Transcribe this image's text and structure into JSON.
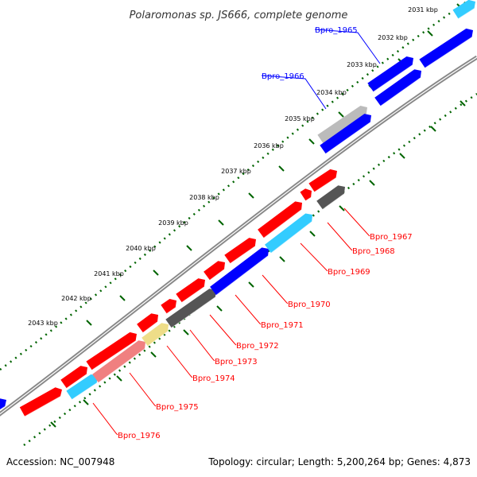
{
  "title": "Polaromonas sp. JS666, complete genome",
  "footer": {
    "accession": "Accession: NC_007948",
    "summary": "Topology: circular; Length: 5,200,264 bp; Genes: 4,873"
  },
  "colors": {
    "forward": "#ff0000",
    "reverse": "#0000ff",
    "backbone": "#777777",
    "tick": "#006400",
    "pseudogene": "#bbbbbb",
    "unknown": "#555555",
    "rna": "#33ccff",
    "other": "#eedd88"
  },
  "ticks": [
    "2031 kbp",
    "2032 kbp",
    "2033 kbp",
    "2034 kbp",
    "2035 kbp",
    "2036 kbp",
    "2037 kbp",
    "2038 kbp",
    "2039 kbp",
    "2040 kbp",
    "2041 kbp",
    "2042 kbp",
    "2043 kbp"
  ],
  "genes": [
    {
      "label": "Bpro_1965",
      "color": "reverse"
    },
    {
      "label": "Bpro_1966",
      "color": "reverse"
    },
    {
      "label": "Bpro_1967",
      "color": "forward"
    },
    {
      "label": "Bpro_1968",
      "color": "forward"
    },
    {
      "label": "Bpro_1969",
      "color": "forward"
    },
    {
      "label": "Bpro_1970",
      "color": "forward"
    },
    {
      "label": "Bpro_1971",
      "color": "forward"
    },
    {
      "label": "Bpro_1972",
      "color": "forward"
    },
    {
      "label": "Bpro_1973",
      "color": "forward"
    },
    {
      "label": "Bpro_1974",
      "color": "forward"
    },
    {
      "label": "Bpro_1975",
      "color": "forward"
    },
    {
      "label": "Bpro_1976",
      "color": "forward"
    }
  ]
}
